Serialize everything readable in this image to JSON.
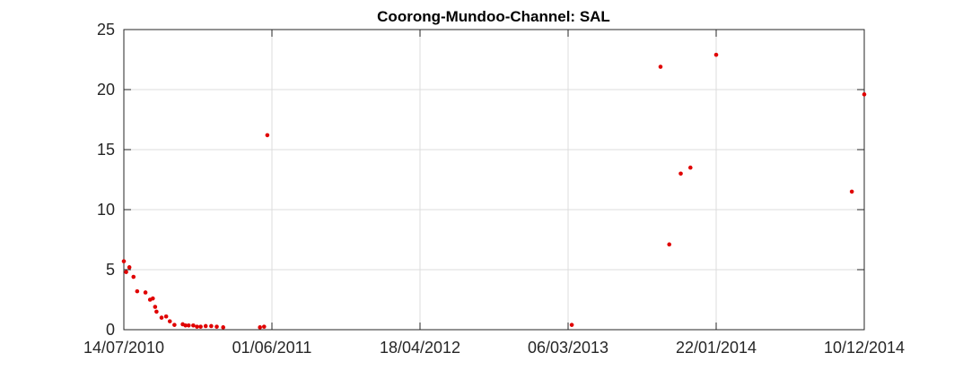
{
  "chart_data": {
    "type": "scatter",
    "title": "Coorong-Mundoo-Channel: SAL",
    "xlabel": "",
    "ylabel": "",
    "x_axis_type": "date",
    "xlim": [
      "2010-07-14",
      "2014-12-10"
    ],
    "ylim": [
      0,
      25
    ],
    "x_ticks": [
      "2010-07-14",
      "2011-06-01",
      "2012-04-18",
      "2013-03-06",
      "2014-01-22",
      "2014-12-10"
    ],
    "x_tick_labels": [
      "14/07/2010",
      "01/06/2011",
      "18/04/2012",
      "06/03/2013",
      "22/01/2014",
      "10/12/2014"
    ],
    "y_ticks": [
      0,
      5,
      10,
      15,
      20,
      25
    ],
    "y_tick_labels": [
      "0",
      "5",
      "10",
      "15",
      "20",
      "25"
    ],
    "grid": true,
    "marker_color": "#e00000",
    "series": [
      {
        "points": [
          {
            "x": "2010-07-14",
            "y": 5.7
          },
          {
            "x": "2010-07-19",
            "y": 4.8
          },
          {
            "x": "2010-07-26",
            "y": 5.2
          },
          {
            "x": "2010-08-04",
            "y": 4.4
          },
          {
            "x": "2010-08-12",
            "y": 3.2
          },
          {
            "x": "2010-08-30",
            "y": 3.1
          },
          {
            "x": "2010-09-09",
            "y": 2.5
          },
          {
            "x": "2010-09-15",
            "y": 2.6
          },
          {
            "x": "2010-09-20",
            "y": 1.9
          },
          {
            "x": "2010-09-23",
            "y": 1.5
          },
          {
            "x": "2010-10-04",
            "y": 1.0
          },
          {
            "x": "2010-10-14",
            "y": 1.1
          },
          {
            "x": "2010-10-22",
            "y": 0.7
          },
          {
            "x": "2010-11-01",
            "y": 0.4
          },
          {
            "x": "2010-11-19",
            "y": 0.45
          },
          {
            "x": "2010-11-25",
            "y": 0.35
          },
          {
            "x": "2010-12-02",
            "y": 0.35
          },
          {
            "x": "2010-12-12",
            "y": 0.35
          },
          {
            "x": "2010-12-20",
            "y": 0.25
          },
          {
            "x": "2010-12-28",
            "y": 0.25
          },
          {
            "x": "2011-01-08",
            "y": 0.3
          },
          {
            "x": "2011-01-20",
            "y": 0.3
          },
          {
            "x": "2011-02-01",
            "y": 0.25
          },
          {
            "x": "2011-02-15",
            "y": 0.2
          },
          {
            "x": "2011-05-22",
            "y": 16.2
          },
          {
            "x": "2011-05-06",
            "y": 0.2
          },
          {
            "x": "2011-05-15",
            "y": 0.25
          },
          {
            "x": "2013-03-14",
            "y": 0.4
          },
          {
            "x": "2013-09-23",
            "y": 21.9
          },
          {
            "x": "2013-10-12",
            "y": 7.1
          },
          {
            "x": "2013-11-06",
            "y": 13.0
          },
          {
            "x": "2013-11-27",
            "y": 13.5
          },
          {
            "x": "2014-01-22",
            "y": 22.9
          },
          {
            "x": "2014-11-13",
            "y": 11.5
          },
          {
            "x": "2014-12-10",
            "y": 19.6
          }
        ]
      }
    ]
  }
}
